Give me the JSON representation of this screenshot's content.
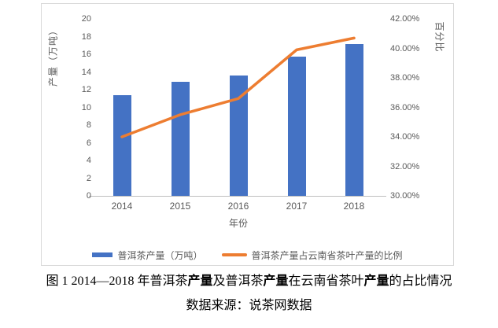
{
  "chart_data": {
    "type": "bar",
    "subtype": "combo-bar-line-dual-axis",
    "categories": [
      "2014",
      "2015",
      "2016",
      "2017",
      "2018"
    ],
    "series": [
      {
        "name": "普洱茶产量（万吨）",
        "type": "bar",
        "axis": "left",
        "color": "#4472C4",
        "values": [
          11.4,
          12.9,
          13.6,
          15.7,
          17.2
        ]
      },
      {
        "name": "普洱茶产量占云南省茶叶产量的比例",
        "type": "line",
        "axis": "right",
        "color": "#ED7D31",
        "values": [
          34.0,
          35.5,
          36.6,
          39.9,
          40.7
        ]
      }
    ],
    "left_axis": {
      "title": "产量（万吨）",
      "min": 0,
      "max": 20,
      "step": 2
    },
    "right_axis": {
      "title": "百分比",
      "min": 30,
      "max": 42,
      "step": 2,
      "tick_format": "0.00%"
    },
    "x_axis": {
      "title": "年份"
    },
    "legend_position": "bottom",
    "grid": false
  },
  "legend": {
    "bar_label": "普洱茶产量（万吨）",
    "line_label": "普洱茶产量占云南省茶叶产量的比例"
  },
  "caption": {
    "line1_parts": [
      {
        "text": "图 1 2014—2018 年普洱茶",
        "bold": false
      },
      {
        "text": "产量",
        "bold": true
      },
      {
        "text": "及普洱茶",
        "bold": false
      },
      {
        "text": "产量",
        "bold": true
      },
      {
        "text": "在云南省茶叶",
        "bold": false
      },
      {
        "text": "产量",
        "bold": true
      },
      {
        "text": "的占比情况",
        "bold": false
      }
    ],
    "line2": "数据来源：说茶网数据"
  },
  "colors": {
    "bar": "#4472C4",
    "line": "#ED7D31",
    "axis_text": "#595959",
    "chart_border": "#D9D9D9",
    "axis_line": "#BFBFBF"
  }
}
